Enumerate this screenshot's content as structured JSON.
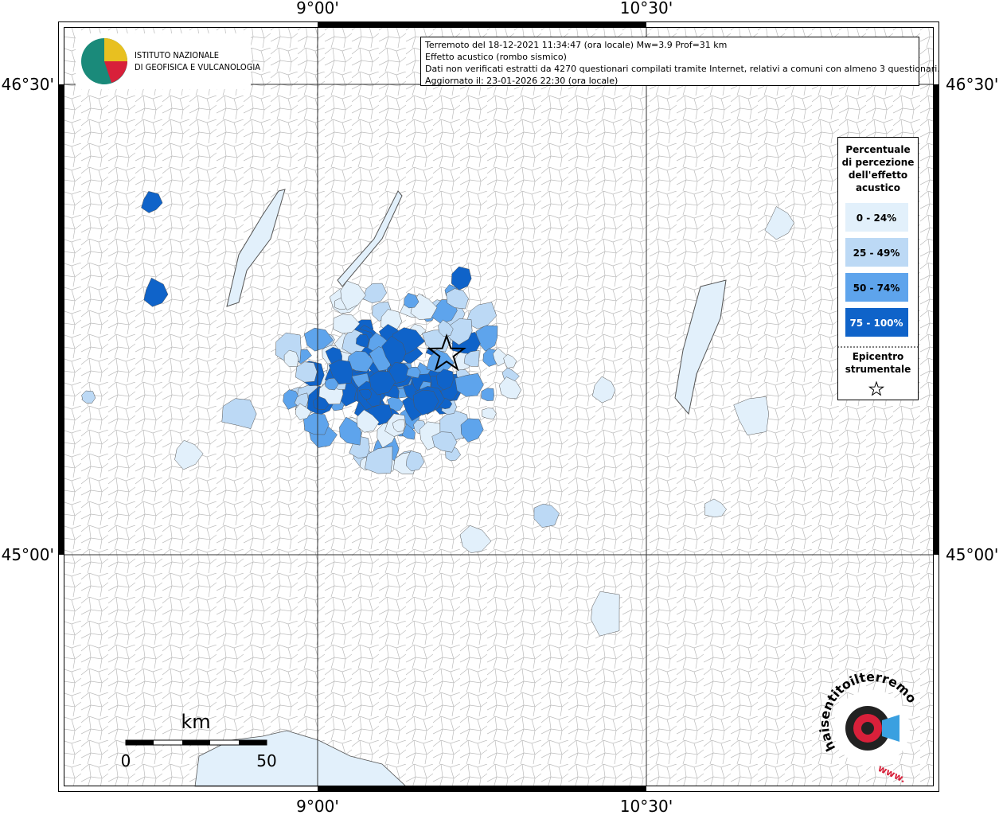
{
  "axes": {
    "top": [
      "9°00'",
      "10°30'"
    ],
    "bottom": [
      "9°00'",
      "10°30'"
    ],
    "left": [
      "46°30'",
      "45°00'"
    ],
    "right": [
      "46°30'",
      "45°00'"
    ]
  },
  "logo": {
    "line1": "ISTITUTO NAZIONALE",
    "line2": "DI GEOFISICA E VULCANOLOGIA"
  },
  "info": {
    "lines": [
      "Terremoto del 18-12-2021 11:34:47 (ora locale) Mw=3.9 Prof=31 km",
      "Effetto acustico (rombo sismico)",
      "Dati non verificati estratti da 4270 questionari compilati tramite Internet, relativi a comuni con almeno 3 questionari.",
      "Aggiornato il: 23-01-2026 22:30 (ora locale)"
    ]
  },
  "legend": {
    "title_lines": [
      "Percentuale",
      "di percezione",
      "dell'effetto",
      "acustico"
    ],
    "items": [
      {
        "label": "0 - 24%",
        "color": "#e2f0fb"
      },
      {
        "label": "25 - 49%",
        "color": "#bcd9f5"
      },
      {
        "label": "50 - 74%",
        "color": "#5ea4ec"
      },
      {
        "label": "75 - 100%",
        "color": "#0f63c9"
      }
    ],
    "epicenter_lines": [
      "Epicentro",
      "strumentale"
    ]
  },
  "scale": {
    "unit": "km",
    "start": 0,
    "end": 50
  },
  "site_logo": {
    "text": "haisentitoilterremoto.it",
    "www": "www."
  }
}
